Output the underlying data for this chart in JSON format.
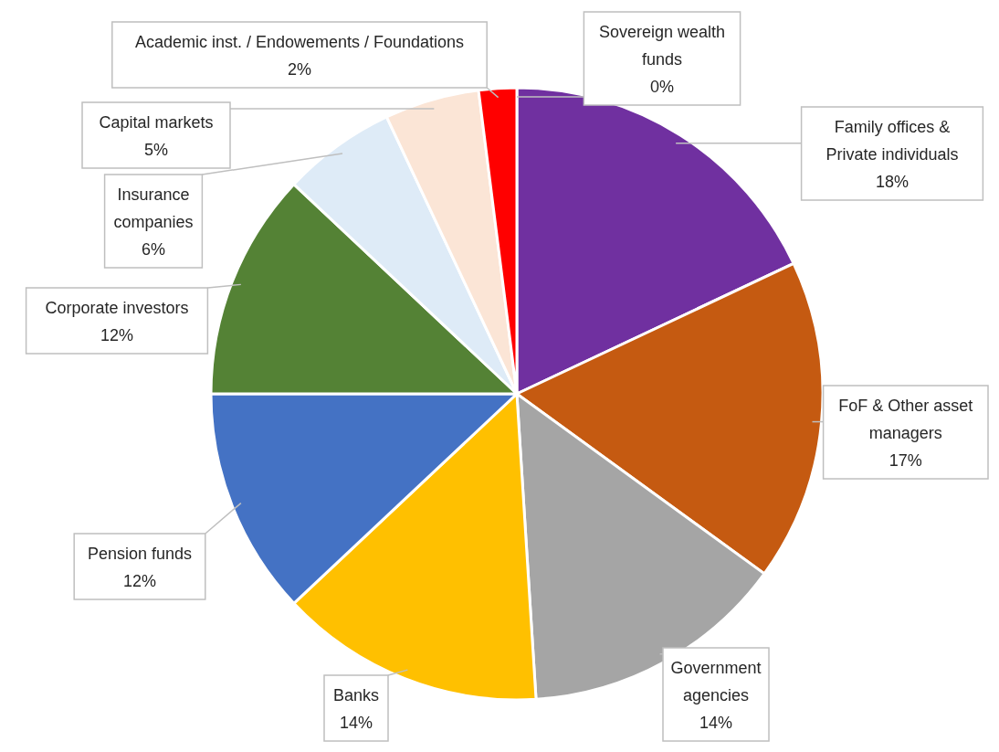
{
  "chart_data": {
    "type": "pie",
    "categories": [
      "Sovereign wealth funds",
      "Family offices & Private individuals",
      "FoF & Other asset managers",
      "Government agencies",
      "Banks",
      "Pension funds",
      "Corporate investors",
      "Insurance companies",
      "Capital markets",
      "Academic inst. / Endowements / Foundations"
    ],
    "values": [
      0,
      18,
      17,
      14,
      14,
      12,
      12,
      6,
      5,
      2
    ],
    "value_labels": [
      "0%",
      "18%",
      "17%",
      "14%",
      "14%",
      "12%",
      "12%",
      "6%",
      "5%",
      "2%"
    ],
    "colors": [
      "#5b9bd5",
      "#7030a0",
      "#c55a11",
      "#a5a5a5",
      "#ffc000",
      "#4472c4",
      "#548235",
      "#deebf7",
      "#fbe5d6",
      "#ff0000"
    ],
    "legend": false
  }
}
